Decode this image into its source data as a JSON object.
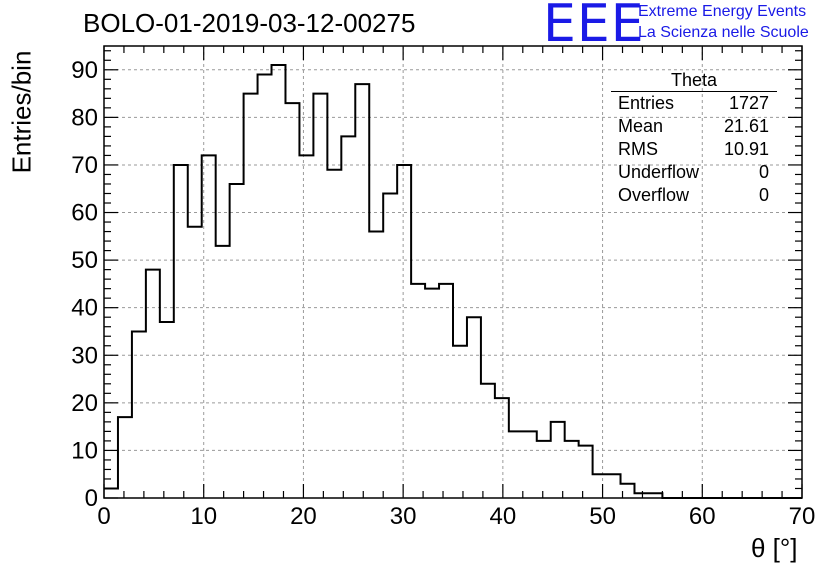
{
  "title": "BOLO-01-2019-03-12-00275",
  "logo": {
    "mark": "EEE",
    "line1": "Extreme Energy Events",
    "line2": "La Scienza nelle Scuole",
    "color": "#1a1ae6"
  },
  "stats": {
    "title": "Theta",
    "rows": [
      {
        "label": "Entries",
        "value": "1727"
      },
      {
        "label": "Mean",
        "value": "21.61"
      },
      {
        "label": "RMS",
        "value": "10.91"
      },
      {
        "label": "Underflow",
        "value": "0"
      },
      {
        "label": "Overflow",
        "value": "0"
      }
    ]
  },
  "chart_data": {
    "type": "histogram",
    "title": "BOLO-01-2019-03-12-00275",
    "xlabel": "θ [°]",
    "ylabel": "Entries/bin",
    "xlim": [
      0,
      70
    ],
    "ylim": [
      0,
      95
    ],
    "bin_width": 1.4,
    "bin_edges_start": 0,
    "values": [
      2,
      17,
      35,
      48,
      37,
      70,
      57,
      72,
      53,
      66,
      85,
      89,
      91,
      83,
      72,
      85,
      69,
      76,
      87,
      56,
      64,
      70,
      45,
      44,
      45,
      32,
      38,
      24,
      21,
      14,
      14,
      12,
      16,
      12,
      11,
      5,
      5,
      3,
      1,
      1,
      0,
      0,
      0,
      0,
      0,
      0,
      0,
      0,
      0,
      0
    ],
    "x_ticks": [
      0,
      10,
      20,
      30,
      40,
      50,
      60,
      70
    ],
    "y_ticks": [
      0,
      10,
      20,
      30,
      40,
      50,
      60,
      70,
      80,
      90
    ],
    "grid": true,
    "line_color": "#000000"
  }
}
